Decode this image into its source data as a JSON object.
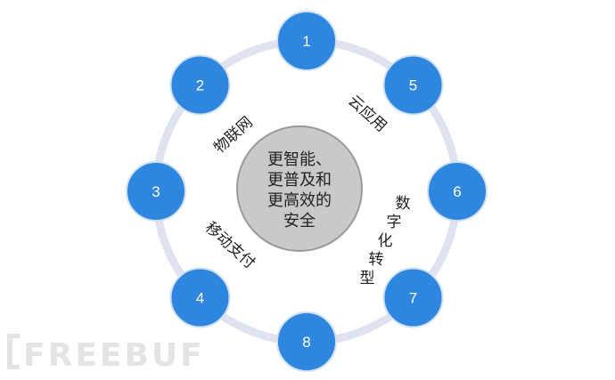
{
  "colors": {
    "ring": "#dfe3ef",
    "node_fill": "#2e86de",
    "node_stroke": "#cfe0f5",
    "center_fill": "#c9c9c9",
    "center_stroke": "#9a9a9a",
    "text": "#222222",
    "watermark": "#e4e4e4"
  },
  "center": {
    "lines": [
      "更智能、",
      "更普及和",
      "更高效的",
      "安全"
    ]
  },
  "nodes": [
    "1",
    "5",
    "6",
    "7",
    "8",
    "4",
    "3",
    "2"
  ],
  "topics": {
    "iot": "物联网",
    "cloud": "云应用",
    "digital": "数字化转型",
    "mobile_pay": "移动支付"
  },
  "watermark": {
    "text": "FREEBUF"
  }
}
